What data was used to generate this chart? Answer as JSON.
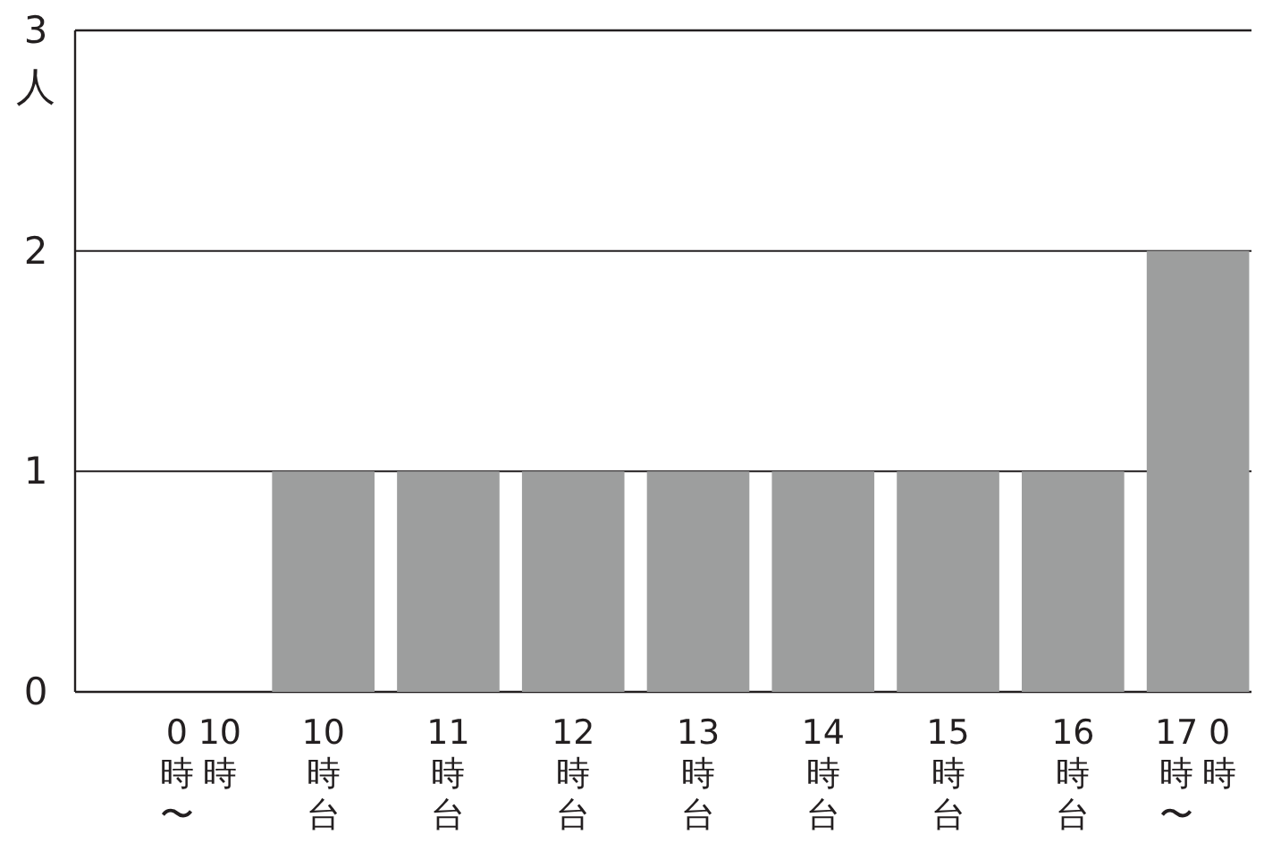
{
  "chart_data": {
    "type": "bar",
    "ylabel": "人",
    "categories": [
      "0時〜10時",
      "10時台",
      "11時台",
      "12時台",
      "13時台",
      "14時台",
      "15時台",
      "16時台",
      "17時〜0時"
    ],
    "values": [
      0,
      1,
      1,
      1,
      1,
      1,
      1,
      1,
      2
    ],
    "color": "#9d9e9e",
    "ylim": [
      0,
      3
    ],
    "yticks": [
      0,
      1,
      2,
      3
    ],
    "grid": "y"
  }
}
